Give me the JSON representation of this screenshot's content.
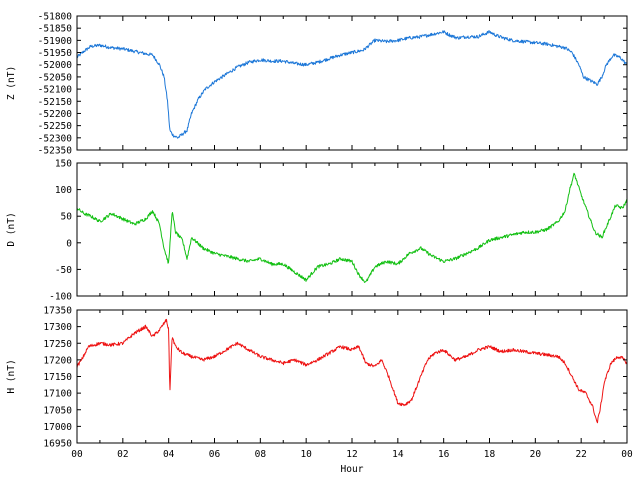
{
  "chart_data": [
    {
      "type": "line",
      "id": "Z",
      "ylabel": "Z (nT)",
      "ylim": [
        -52350,
        -51800
      ],
      "yticks": [
        -52350,
        -52300,
        -52250,
        -52200,
        -52150,
        -52100,
        -52050,
        -52000,
        -51950,
        -51900,
        -51850,
        -51800
      ],
      "xlim": [
        0,
        24
      ],
      "grid": false,
      "color": "#1e78d8",
      "series": [
        {
          "x": [
            0,
            0.3,
            0.6,
            1.0,
            1.5,
            2.0,
            2.5,
            3.0,
            3.3,
            3.6,
            3.8,
            3.95,
            4.05,
            4.2,
            4.4,
            4.6,
            4.8,
            5.0,
            5.3,
            5.6,
            6.0,
            6.5,
            7.0,
            7.5,
            8.0,
            8.5,
            9.0,
            9.5,
            10.0,
            10.5,
            11.0,
            11.5,
            12.0,
            12.5,
            13.0,
            13.5,
            14.0,
            14.5,
            15.0,
            15.5,
            16.0,
            16.3,
            16.6,
            17.0,
            17.5,
            18.0,
            18.3,
            18.6,
            19.0,
            19.5,
            20.0,
            20.5,
            21.0,
            21.3,
            21.6,
            21.9,
            22.1,
            22.3,
            22.5,
            22.7,
            22.9,
            23.1,
            23.4,
            23.7,
            24.0
          ],
          "y": [
            -51970,
            -51945,
            -51925,
            -51920,
            -51930,
            -51935,
            -51945,
            -51955,
            -51960,
            -52000,
            -52050,
            -52150,
            -52270,
            -52290,
            -52300,
            -52285,
            -52270,
            -52200,
            -52140,
            -52100,
            -52070,
            -52040,
            -52010,
            -51990,
            -51980,
            -51985,
            -51985,
            -51995,
            -52000,
            -51990,
            -51975,
            -51960,
            -51950,
            -51940,
            -51900,
            -51905,
            -51900,
            -51890,
            -51885,
            -51875,
            -51865,
            -51880,
            -51890,
            -51885,
            -51885,
            -51865,
            -51880,
            -51890,
            -51900,
            -51905,
            -51910,
            -51915,
            -51925,
            -51930,
            -51950,
            -52000,
            -52050,
            -52060,
            -52070,
            -52080,
            -52050,
            -52000,
            -51960,
            -51970,
            -52000
          ]
        }
      ]
    },
    {
      "type": "line",
      "id": "D",
      "ylabel": "D (nT)",
      "ylim": [
        -100,
        150
      ],
      "yticks": [
        -100,
        -50,
        0,
        50,
        100,
        150
      ],
      "xlim": [
        0,
        24
      ],
      "grid": false,
      "color": "#14c014",
      "series": [
        {
          "x": [
            0,
            0.3,
            0.6,
            1.0,
            1.5,
            2.0,
            2.5,
            3.0,
            3.3,
            3.6,
            3.8,
            4.0,
            4.15,
            4.3,
            4.6,
            4.8,
            5.0,
            5.5,
            6.0,
            6.5,
            7.0,
            7.5,
            8.0,
            8.5,
            9.0,
            9.5,
            10.0,
            10.5,
            11.0,
            11.5,
            12.0,
            12.3,
            12.6,
            13.0,
            13.5,
            14.0,
            14.5,
            15.0,
            15.5,
            16.0,
            16.5,
            17.0,
            17.5,
            18.0,
            18.5,
            19.0,
            19.5,
            20.0,
            20.5,
            21.0,
            21.3,
            21.5,
            21.7,
            22.0,
            22.3,
            22.6,
            22.9,
            23.2,
            23.5,
            23.8,
            24.0
          ],
          "y": [
            65,
            55,
            50,
            40,
            55,
            45,
            35,
            45,
            60,
            35,
            -10,
            -40,
            60,
            20,
            5,
            -30,
            10,
            -10,
            -20,
            -25,
            -30,
            -35,
            -30,
            -40,
            -40,
            -55,
            -70,
            -45,
            -40,
            -30,
            -35,
            -60,
            -75,
            -45,
            -35,
            -40,
            -20,
            -10,
            -25,
            -35,
            -30,
            -20,
            -10,
            5,
            10,
            15,
            20,
            20,
            25,
            40,
            60,
            100,
            130,
            90,
            55,
            20,
            10,
            40,
            70,
            65,
            80
          ]
        }
      ]
    },
    {
      "type": "line",
      "id": "H",
      "ylabel": "H (nT)",
      "xlabel": "Hour",
      "ylim": [
        16950,
        17350
      ],
      "yticks": [
        16950,
        17000,
        17050,
        17100,
        17150,
        17200,
        17250,
        17300,
        17350
      ],
      "xlim": [
        0,
        24
      ],
      "xticks": [
        "00",
        "02",
        "04",
        "06",
        "08",
        "10",
        "12",
        "14",
        "16",
        "18",
        "20",
        "22",
        "00"
      ],
      "grid": false,
      "color": "#ee1414",
      "series": [
        {
          "x": [
            0,
            0.2,
            0.5,
            1.0,
            1.5,
            2.0,
            2.5,
            3.0,
            3.3,
            3.6,
            3.9,
            4.0,
            4.05,
            4.15,
            4.3,
            4.6,
            5.0,
            5.5,
            6.0,
            6.5,
            7.0,
            7.5,
            8.0,
            8.5,
            9.0,
            9.5,
            10.0,
            10.5,
            11.0,
            11.5,
            12.0,
            12.3,
            12.6,
            13.0,
            13.3,
            13.6,
            14.0,
            14.3,
            14.6,
            15.0,
            15.3,
            15.6,
            16.0,
            16.5,
            17.0,
            17.5,
            18.0,
            18.5,
            19.0,
            19.5,
            20.0,
            20.5,
            21.0,
            21.3,
            21.6,
            21.9,
            22.2,
            22.5,
            22.7,
            22.85,
            23.0,
            23.3,
            23.6,
            23.8,
            24.0
          ],
          "y": [
            17180,
            17200,
            17240,
            17250,
            17245,
            17250,
            17280,
            17300,
            17270,
            17290,
            17320,
            17290,
            17100,
            17270,
            17240,
            17220,
            17210,
            17200,
            17210,
            17230,
            17250,
            17230,
            17210,
            17200,
            17190,
            17200,
            17185,
            17200,
            17220,
            17240,
            17230,
            17240,
            17190,
            17180,
            17200,
            17150,
            17070,
            17065,
            17080,
            17150,
            17200,
            17220,
            17230,
            17200,
            17210,
            17230,
            17240,
            17225,
            17230,
            17225,
            17220,
            17215,
            17210,
            17190,
            17150,
            17110,
            17100,
            17060,
            17010,
            17060,
            17130,
            17190,
            17210,
            17205,
            17190
          ]
        }
      ]
    }
  ]
}
